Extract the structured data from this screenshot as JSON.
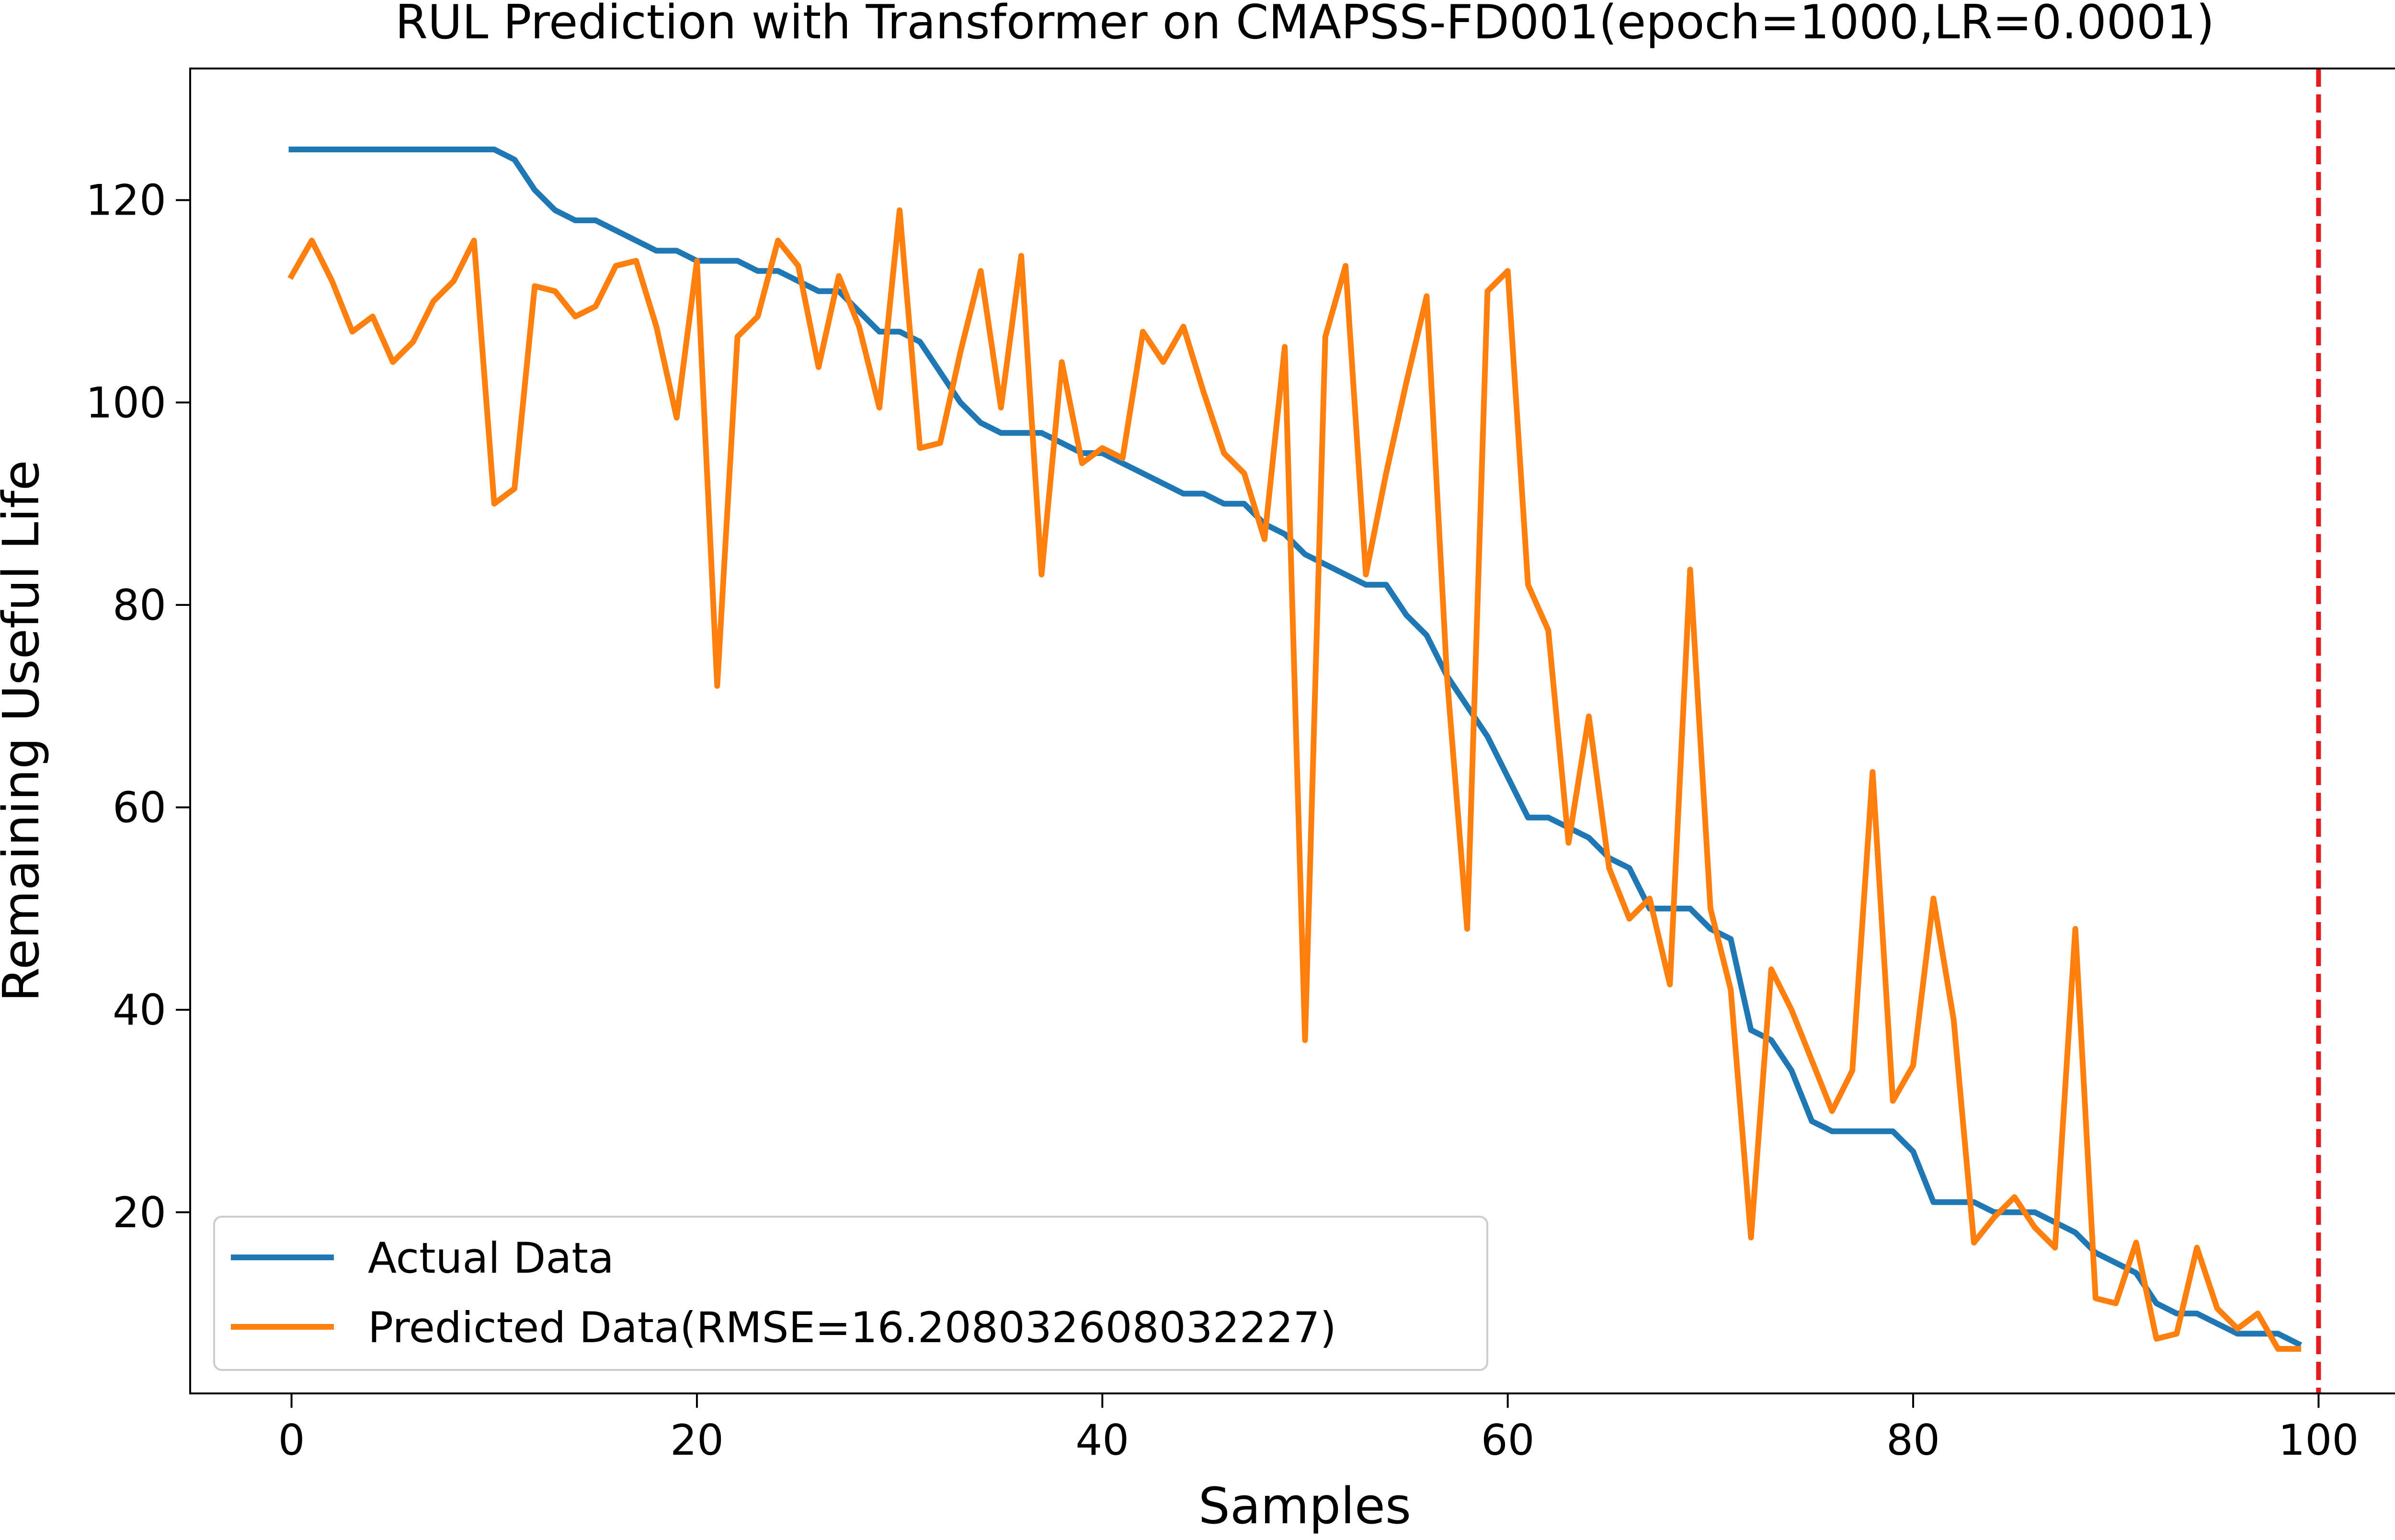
{
  "chart_data": {
    "type": "line",
    "title": "RUL Prediction with Transformer on CMAPSS-FD001(epoch=1000,LR=0.0001)",
    "xlabel": "Samples",
    "ylabel": "Remaining Useful Life",
    "xlim": [
      -5,
      105
    ],
    "ylim": [
      2.1,
      133
    ],
    "xticks": [
      0,
      20,
      40,
      60,
      80,
      100
    ],
    "yticks": [
      20,
      40,
      60,
      80,
      100,
      120
    ],
    "grid": false,
    "legend_position": "lower-left",
    "x": [
      0,
      1,
      2,
      3,
      4,
      5,
      6,
      7,
      8,
      9,
      10,
      11,
      12,
      13,
      14,
      15,
      16,
      17,
      18,
      19,
      20,
      21,
      22,
      23,
      24,
      25,
      26,
      27,
      28,
      29,
      30,
      31,
      32,
      33,
      34,
      35,
      36,
      37,
      38,
      39,
      40,
      41,
      42,
      43,
      44,
      45,
      46,
      47,
      48,
      49,
      50,
      51,
      52,
      53,
      54,
      55,
      56,
      57,
      58,
      59,
      60,
      61,
      62,
      63,
      64,
      65,
      66,
      67,
      68,
      69,
      70,
      71,
      72,
      73,
      74,
      75,
      76,
      77,
      78,
      79,
      80,
      81,
      82,
      83,
      84,
      85,
      86,
      87,
      88,
      89,
      90,
      91,
      92,
      93,
      94,
      95,
      96,
      97,
      98,
      99
    ],
    "series": [
      {
        "name": "Actual Data",
        "color": "#1f77b4",
        "values": [
          125,
          125,
          125,
          125,
          125,
          125,
          125,
          125,
          125,
          125,
          125,
          124,
          121,
          119,
          118,
          118,
          117,
          116,
          115,
          115,
          114,
          114,
          114,
          113,
          113,
          112,
          111,
          111,
          109,
          107,
          107,
          106,
          103,
          100,
          98,
          97,
          97,
          97,
          96,
          95,
          95,
          94,
          93,
          92,
          91,
          91,
          90,
          90,
          88,
          87,
          85,
          84,
          83,
          82,
          82,
          79,
          77,
          73,
          70,
          67,
          63,
          59,
          59,
          58,
          57,
          55,
          54,
          50,
          50,
          50,
          48,
          47,
          38,
          37,
          34,
          29,
          28,
          28,
          28,
          28,
          26,
          21,
          21,
          21,
          20,
          20,
          20,
          19,
          18,
          16,
          15,
          14,
          11,
          10,
          10,
          9,
          8,
          8,
          8,
          7
        ]
      },
      {
        "name": "Predicted Data(RMSE=16.208032608032227)",
        "color": "#ff7f0e",
        "values": [
          112.5,
          116,
          112,
          107,
          108.5,
          104,
          106,
          110,
          112,
          116,
          90,
          91.5,
          111.5,
          111,
          108.5,
          109.5,
          113.5,
          114,
          107.5,
          98.5,
          114,
          72,
          106.5,
          108.5,
          116,
          113.5,
          103.5,
          112.5,
          107.5,
          99.5,
          119,
          95.5,
          96,
          105,
          113,
          99.5,
          114.5,
          83,
          104,
          94,
          95.5,
          94.5,
          107,
          104,
          107.5,
          101,
          95,
          93,
          86.5,
          105.5,
          37,
          106.5,
          113.5,
          83,
          93,
          102,
          110.5,
          73,
          48,
          111,
          113,
          82,
          77.5,
          56.5,
          69,
          54,
          49,
          51,
          42.5,
          83.5,
          50,
          42,
          17.5,
          44,
          40,
          35,
          30,
          34,
          63.5,
          31,
          34.5,
          51,
          39,
          17,
          19.5,
          21.5,
          18.5,
          16.5,
          48,
          11.5,
          11,
          17,
          7.5,
          8,
          16.5,
          10.5,
          8.5,
          10,
          6.5,
          6.5
        ]
      }
    ],
    "reference_line": {
      "x": 100,
      "color": "#e41a1c",
      "style": "dashed"
    }
  }
}
